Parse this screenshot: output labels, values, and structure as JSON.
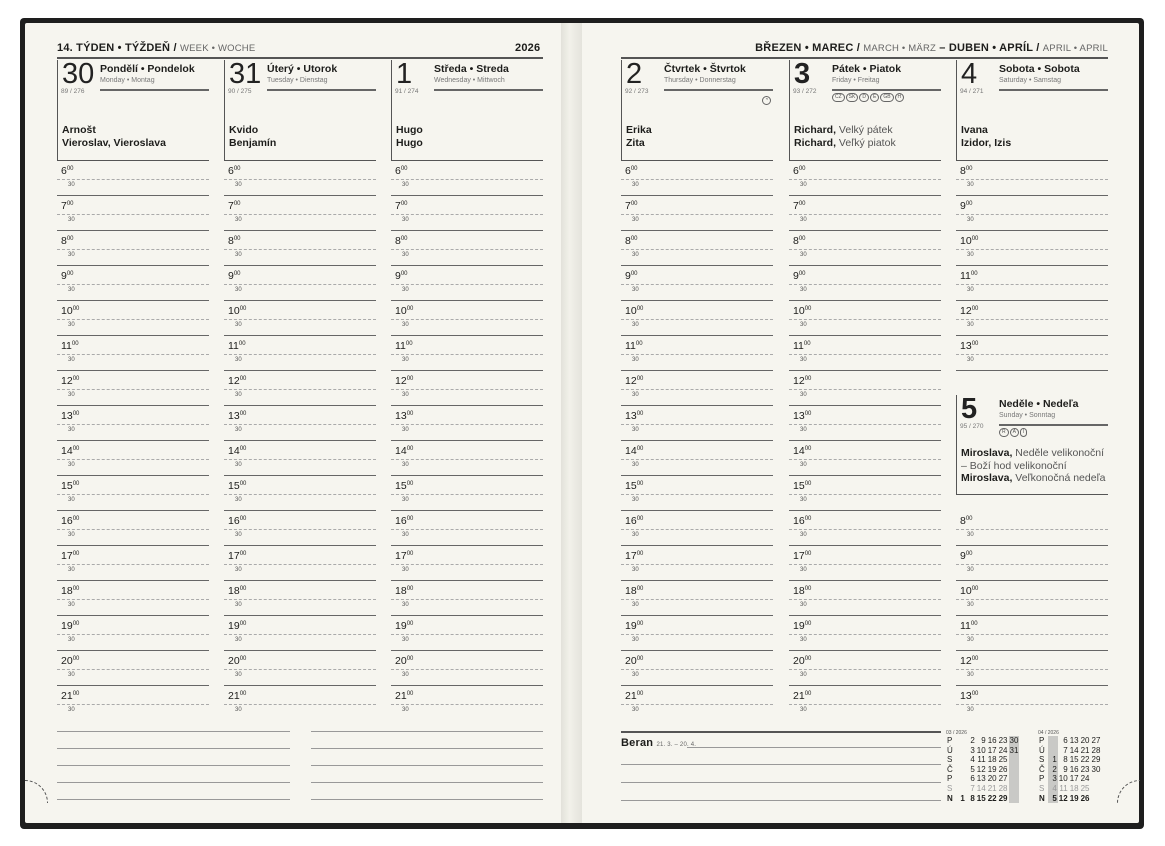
{
  "left_header": {
    "week": "14. TÝDEN • TÝŽDEŇ /",
    "week_sub": "WEEK • WOCHE",
    "year": "2026"
  },
  "right_header": {
    "month1": "BŘEZEN • MAREC /",
    "month1_sub": "MARCH • MÄRZ",
    "dash": "–",
    "month2": "DUBEN • APRÍL /",
    "month2_sub": "APRIL • APRIL"
  },
  "time": {
    "minutes": "00",
    "half": "30"
  },
  "days": [
    {
      "num": "30",
      "name": "Pondělí • Pondelok",
      "sub": "Monday • Montag",
      "count": "89 / 276",
      "names": [
        {
          "b": "Arnošt",
          "l": ""
        },
        {
          "b": "Vieroslav, Vieroslava",
          "l": ""
        }
      ],
      "hours": [
        6,
        7,
        8,
        9,
        10,
        11,
        12,
        13,
        14,
        15,
        16,
        17,
        18,
        19,
        20,
        21
      ]
    },
    {
      "num": "31",
      "name": "Úterý • Utorok",
      "sub": "Tuesday • Dienstag",
      "count": "90 / 275",
      "names": [
        {
          "b": "Kvido",
          "l": ""
        },
        {
          "b": "Benjamín",
          "l": ""
        }
      ],
      "hours": [
        6,
        7,
        8,
        9,
        10,
        11,
        12,
        13,
        14,
        15,
        16,
        17,
        18,
        19,
        20,
        21
      ]
    },
    {
      "num": "1",
      "name": "Středa • Streda",
      "sub": "Wednesday • Mittwoch",
      "count": "91 / 274",
      "names": [
        {
          "b": "Hugo",
          "l": ""
        },
        {
          "b": "Hugo",
          "l": ""
        }
      ],
      "hours": [
        6,
        7,
        8,
        9,
        10,
        11,
        12,
        13,
        14,
        15,
        16,
        17,
        18,
        19,
        20,
        21
      ]
    },
    {
      "num": "2",
      "name": "Čtvrtek • Štvrtok",
      "sub": "Thursday • Donnerstag",
      "count": "92 / 273",
      "icon": "moon-phase-icon",
      "names": [
        {
          "b": "Erika",
          "l": ""
        },
        {
          "b": "Zita",
          "l": ""
        }
      ],
      "hours": [
        6,
        7,
        8,
        9,
        10,
        11,
        12,
        13,
        14,
        15,
        16,
        17,
        18,
        19,
        20,
        21
      ]
    },
    {
      "num": "3",
      "bold": true,
      "name": "Pátek • Piatok",
      "sub": "Friday • Freitag",
      "count": "93 / 272",
      "badges": [
        "CZ",
        "SK",
        "D",
        "E",
        "GB",
        "H"
      ],
      "names": [
        {
          "b": "Richard,",
          "l": " Velký pátek"
        },
        {
          "b": "Richard,",
          "l": " Veľký piatok"
        }
      ],
      "hours": [
        6,
        7,
        8,
        9,
        10,
        11,
        12,
        13,
        14,
        15,
        16,
        17,
        18,
        19,
        20,
        21
      ]
    },
    {
      "num": "4",
      "name": "Sobota • Sobota",
      "sub": "Saturday • Samstag",
      "count": "94 / 271",
      "names": [
        {
          "b": "Ivana",
          "l": ""
        },
        {
          "b": "Izidor, Izis",
          "l": ""
        }
      ],
      "hours": [
        8,
        9,
        10,
        11,
        12,
        13
      ]
    },
    {
      "num": "5",
      "bold": true,
      "name": "Neděle • Nedeľa",
      "sub": "Sunday • Sonntag",
      "count": "95 / 270",
      "badges": [
        "R",
        "A",
        "I"
      ],
      "names": [
        {
          "b": "Miroslava,",
          "l": " Neděle velikonoční"
        },
        {
          "b": "",
          "l": "– Boží hod velikonoční"
        },
        {
          "b": "Miroslava,",
          "l": " Veľkonočná nedeľa"
        }
      ],
      "hours": [
        8,
        9,
        10,
        11,
        12,
        13
      ]
    }
  ],
  "zodiac": {
    "name": "Beran",
    "dates": "21. 3. – 20. 4."
  },
  "mini_calendars": [
    {
      "title": "03 / 2026",
      "rows": [
        {
          "d": "P",
          "n": [
            null,
            2,
            9,
            16,
            23,
            30
          ]
        },
        {
          "d": "Ú",
          "n": [
            null,
            3,
            10,
            17,
            24,
            31
          ]
        },
        {
          "d": "S",
          "n": [
            null,
            4,
            11,
            18,
            25,
            null
          ]
        },
        {
          "d": "Č",
          "n": [
            null,
            5,
            12,
            19,
            26,
            null
          ]
        },
        {
          "d": "P",
          "n": [
            null,
            6,
            13,
            20,
            27,
            null
          ]
        },
        {
          "d": "S",
          "n": [
            null,
            7,
            14,
            21,
            28,
            null
          ]
        },
        {
          "d": "N",
          "n": [
            1,
            8,
            15,
            22,
            29,
            null
          ]
        }
      ],
      "highlight_col": 5
    },
    {
      "title": "04 / 2026",
      "rows": [
        {
          "d": "P",
          "n": [
            null,
            6,
            13,
            20,
            27
          ]
        },
        {
          "d": "Ú",
          "n": [
            null,
            7,
            14,
            21,
            28
          ]
        },
        {
          "d": "S",
          "n": [
            1,
            8,
            15,
            22,
            29
          ]
        },
        {
          "d": "Č",
          "n": [
            2,
            9,
            16,
            23,
            30
          ]
        },
        {
          "d": "P",
          "n": [
            3,
            10,
            17,
            24,
            null
          ]
        },
        {
          "d": "S",
          "n": [
            4,
            11,
            18,
            25,
            null
          ]
        },
        {
          "d": "N",
          "n": [
            5,
            12,
            19,
            26,
            null
          ]
        }
      ],
      "highlight_col": 0
    }
  ]
}
